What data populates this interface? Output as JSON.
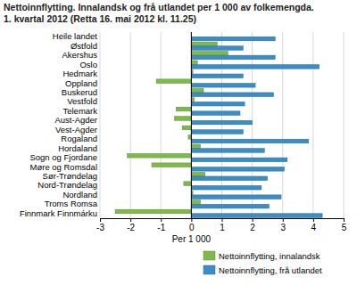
{
  "chart_data": {
    "type": "bar",
    "orientation": "horizontal",
    "title": "Nettoinnflytting. Innalandsk og frå utlandet per 1 000 av folkemengda.",
    "subtitle": "1. kvartal 2012 (Retta 16. mai 2012 kl. 11.25)",
    "x_label": "Per 1 000",
    "categories": [
      "Heile landet",
      "Østfold",
      "Akershus",
      "Oslo",
      "Hedmark",
      "Oppland",
      "Buskerud",
      "Vestfold",
      "Telemark",
      "Aust-Agder",
      "Vest-Agder",
      "Rogaland",
      "Hordaland",
      "Sogn og Fjordane",
      "Møre og Romsdal",
      "Sør-Trøndelag",
      "Nord-Trøndelag",
      "Nordland",
      "Troms Romsa",
      "Finnmark Finnmárku"
    ],
    "series": [
      {
        "name": "Nettoinnflytting, innalandsk",
        "color": "#7dba4a",
        "values": [
          0,
          0.85,
          1.2,
          0.2,
          0.05,
          -1.15,
          0.4,
          0.1,
          -0.5,
          -0.55,
          -0.3,
          -0.1,
          0.3,
          -2.1,
          -1.3,
          0.45,
          -0.25,
          0.05,
          0.3,
          -2.5
        ]
      },
      {
        "name": "Nettoinnflytting, frå utlandet",
        "color": "#3b8dc8",
        "values": [
          2.75,
          1.7,
          2.75,
          4.2,
          1.7,
          2.1,
          2.7,
          1.75,
          1.6,
          2.0,
          1.7,
          3.85,
          2.4,
          3.15,
          3.05,
          2.5,
          2.3,
          2.95,
          2.55,
          4.3
        ]
      }
    ],
    "xlim": [
      -3,
      5
    ],
    "xticks": [
      -3,
      -2,
      -1,
      0,
      1,
      2,
      3,
      4,
      5
    ],
    "grid": true,
    "legend": "bottom-right"
  }
}
